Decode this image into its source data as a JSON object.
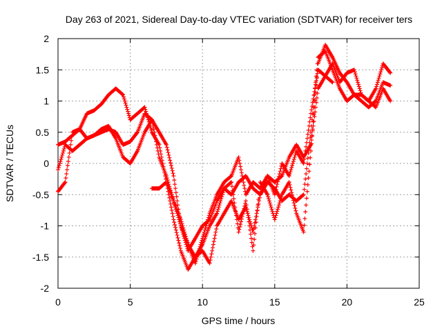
{
  "chart_data": {
    "type": "scatter",
    "title": "Day 263 of 2021, Sidereal Day-to-day VTEC variation (SDTVAR) for receiver ters",
    "xlabel": "GPS time / hours",
    "ylabel": "SDTVAR / TECUs",
    "xlim": [
      0,
      25
    ],
    "ylim": [
      -2,
      2
    ],
    "xticks": [
      0,
      5,
      10,
      15,
      20,
      25
    ],
    "yticks": [
      -2,
      -1.5,
      -1,
      -0.5,
      0,
      0.5,
      1,
      1.5,
      2
    ],
    "xtick_labels": [
      "0",
      "5",
      "10",
      "15",
      "20",
      "25"
    ],
    "ytick_labels": [
      "-2",
      "-1.5",
      "-1",
      "-0.5",
      "0",
      "0.5",
      "1",
      "1.5",
      "2"
    ],
    "grid": true,
    "marker": "plus",
    "color": "#ff0000",
    "series": [
      {
        "x": [
          0,
          0.5,
          1,
          1.5,
          2,
          2.5,
          3,
          3.5,
          4,
          4.5,
          5,
          5.5,
          6,
          6.5,
          7,
          7.5,
          8,
          8.5,
          9,
          9.5,
          10,
          10.5,
          11,
          11.5,
          12,
          12.5,
          13,
          13.5,
          14,
          14.5,
          15,
          15.5,
          16,
          16.5,
          17,
          17.5,
          18,
          18.5,
          19,
          19.5,
          20,
          20.5,
          21,
          21.5,
          22,
          22.5,
          23
        ],
        "y": [
          0.3,
          0.35,
          0.45,
          0.55,
          0.8,
          0.85,
          0.95,
          1.1,
          1.2,
          1.1,
          0.7,
          0.8,
          0.9,
          0.5,
          0.3,
          -0.3,
          -0.9,
          -1.4,
          -1.7,
          -1.5,
          -1.3,
          -1.0,
          -0.8,
          -0.4,
          -0.5,
          -0.3,
          -0.2,
          -0.4,
          -0.5,
          -0.3,
          -0.4,
          -0.6,
          -0.5,
          -0.6,
          -0.5,
          0.5,
          1.7,
          1.8,
          1.5,
          1.2,
          1.0,
          1.1,
          1.1,
          1.0,
          1.2,
          1.6,
          1.45
        ]
      },
      {
        "x": [
          0,
          0.5,
          1,
          1.5,
          2,
          2.5,
          3,
          3.5,
          4,
          4.5,
          5,
          5.5,
          6,
          6.5,
          7,
          7.5,
          8,
          8.5,
          9,
          9.5,
          10,
          10.5,
          11,
          11.5,
          12,
          12.5,
          13,
          13.5,
          14,
          14.5,
          15,
          15.5,
          16,
          16.5,
          17,
          17.5,
          18,
          18.5,
          19,
          19.5,
          20,
          20.5,
          21,
          21.5,
          22,
          22.5,
          23
        ],
        "y": [
          -0.45,
          -0.3,
          0.5,
          0.55,
          0.4,
          0.45,
          0.5,
          0.55,
          0.5,
          0.3,
          0.35,
          0.5,
          0.8,
          0.7,
          0.1,
          -0.2,
          -0.6,
          -1.0,
          -1.4,
          -1.2,
          -1.0,
          -0.9,
          -0.6,
          -0.4,
          -0.3,
          -1.1,
          -0.6,
          -1.4,
          -0.3,
          -0.5,
          -0.9,
          -0.5,
          -0.3,
          -0.8,
          -1.1,
          0.2,
          1.6,
          1.9,
          1.7,
          1.45,
          1.3,
          1.1,
          1.0,
          0.9,
          1.0,
          1.3,
          1.25
        ]
      },
      {
        "x": [
          0,
          0.5,
          1,
          1.5,
          2,
          2.5,
          3,
          3.5,
          4,
          4.5,
          5,
          5.5,
          6,
          6.5,
          7,
          7.5,
          8,
          8.5,
          9,
          9.5,
          10,
          10.5,
          11,
          11.5,
          12,
          12.5,
          13,
          13.5,
          14,
          14.5,
          15,
          15.5,
          16,
          16.5,
          17,
          17.5,
          18,
          18.5,
          19,
          19.5,
          20,
          20.5,
          21,
          21.5,
          22,
          22.5,
          23
        ],
        "y": [
          -0.1,
          0.3,
          0.2,
          0.3,
          0.4,
          0.45,
          0.55,
          0.6,
          0.4,
          0.1,
          0.0,
          0.2,
          0.5,
          0.7,
          0.5,
          0.3,
          -0.2,
          -1.0,
          -1.3,
          -1.6,
          -1.2,
          -0.8,
          -0.5,
          -0.3,
          -0.2,
          0.1,
          -0.5,
          -0.3,
          -0.4,
          -0.2,
          -0.5,
          0.0,
          -0.2,
          0.2,
          0.0,
          0.8,
          1.5,
          1.4,
          1.6,
          1.3,
          1.45,
          1.5,
          1.1,
          1.0,
          0.9,
          1.2,
          1.0
        ]
      },
      {
        "x": [
          6.5,
          7,
          7.5,
          8,
          8.5,
          9,
          9.5,
          10,
          10.5,
          11,
          11.5,
          12,
          12.5,
          13,
          13.5,
          14,
          14.5,
          15,
          15.5,
          16,
          16.5,
          17,
          17.5,
          18,
          18.5,
          19
        ],
        "y": [
          -0.4,
          -0.4,
          -0.3,
          -0.6,
          -0.9,
          -1.3,
          -1.5,
          -1.4,
          -1.6,
          -1.0,
          -0.8,
          -0.6,
          -0.9,
          -0.7,
          -1.1,
          -0.5,
          -0.2,
          -0.3,
          -0.2,
          0.1,
          0.3,
          0.1,
          0.3,
          1.2,
          1.4,
          1.3
        ]
      }
    ]
  }
}
